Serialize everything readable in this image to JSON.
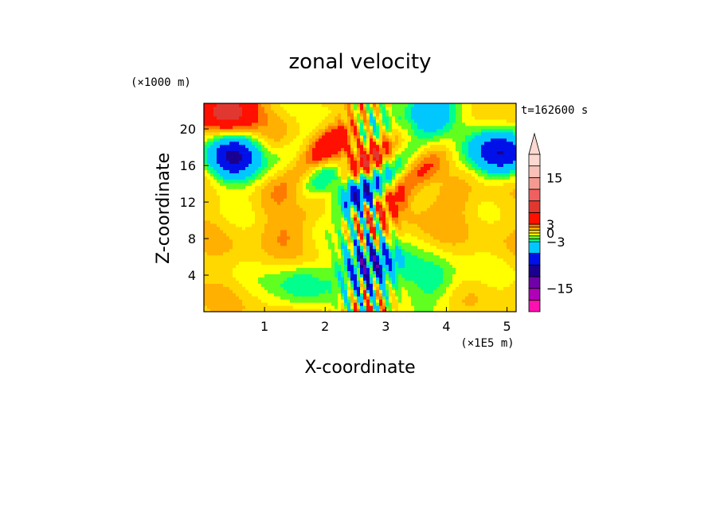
{
  "chart_data": {
    "type": "heatmap",
    "title": "zonal velocity",
    "xlabel": "X-coordinate",
    "ylabel": "Z-coordinate",
    "x_unit": "(×1E5 m)",
    "y_unit": "(×1000 m)",
    "time_label": "t=162600 s",
    "xlim": [
      0,
      5.15
    ],
    "ylim": [
      0,
      22.8
    ],
    "x_ticks": [
      1,
      2,
      3,
      4,
      5
    ],
    "y_ticks": [
      4,
      8,
      12,
      16,
      20
    ],
    "x_tick_labels": [
      "1",
      "2",
      "3",
      "4",
      "5"
    ],
    "y_tick_labels": [
      "4",
      "8",
      "12",
      "16",
      "20"
    ],
    "grid": false,
    "colorbar": {
      "levels": [
        -21,
        -18,
        -15,
        -12,
        -9,
        -6,
        -3,
        -2,
        -1,
        0,
        1,
        2,
        3,
        6,
        9,
        12,
        15,
        18,
        21
      ],
      "colors": [
        "#ff10b0",
        "#b000b8",
        "#7000a8",
        "#1a0090",
        "#0010e8",
        "#00c8ff",
        "#00ff8c",
        "#60ff20",
        "#ffff00",
        "#ffd800",
        "#ffb000",
        "#ff7a00",
        "#ff1000",
        "#e03830",
        "#f06060",
        "#f59a90",
        "#f8c0b8",
        "#fbd8d0"
      ],
      "tick_labels": [
        "15",
        "3",
        "0",
        "-3",
        "-15"
      ],
      "tick_values": [
        15,
        3,
        0,
        -3,
        -15
      ],
      "extend": "max"
    },
    "field_description_values": {
      "background_level": 0.5,
      "features": [
        {
          "x": 2.6,
          "z": 13,
          "value": -12
        },
        {
          "x": 2.9,
          "z": 12.5,
          "value": 8
        },
        {
          "x": 2.3,
          "z": 17,
          "value": 5
        },
        {
          "x": 0.5,
          "z": 17,
          "value": -9
        },
        {
          "x": 4.9,
          "z": 17.5,
          "value": -9
        },
        {
          "x": 3.7,
          "z": 22,
          "value": -6
        },
        {
          "x": 0.4,
          "z": 22,
          "value": 8
        },
        {
          "x": 4.2,
          "z": 12.5,
          "value": 2
        },
        {
          "x": 1.3,
          "z": 9.5,
          "value": 2
        },
        {
          "x": 4.9,
          "z": 6,
          "value": 0.5
        },
        {
          "x": 0.3,
          "z": 6,
          "value": 0.5
        },
        {
          "x": 1.6,
          "z": 3,
          "value": -3
        },
        {
          "x": 3.8,
          "z": 3.5,
          "value": -3
        },
        {
          "x": 2.75,
          "z": 5,
          "value": -9
        }
      ]
    }
  }
}
